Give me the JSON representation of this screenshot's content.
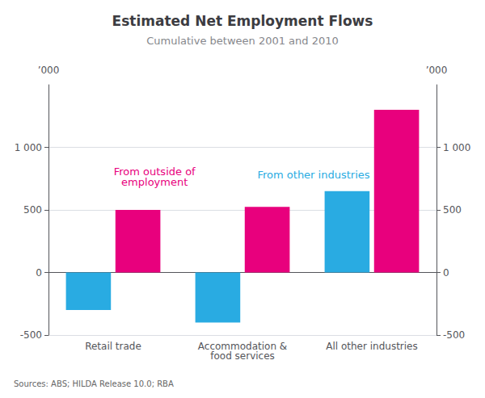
{
  "chart_data": {
    "type": "bar",
    "title": "Estimated Net Employment Flows",
    "subtitle": "Cumulative between 2001 and 2010",
    "ylabel": "’000",
    "y2label": "’000",
    "categories": [
      "Retail trade",
      "Accommodation &\nfood services",
      "All other industries"
    ],
    "series": [
      {
        "color": "#29ABE2",
        "values": [
          -300,
          -400,
          650
        ],
        "annotation": "From other industries"
      },
      {
        "color": "#E8007D",
        "values": [
          500,
          525,
          1300
        ],
        "annotation": "From outside of\nemployment"
      }
    ],
    "ylim": [
      -500,
      1500
    ],
    "yticks": [
      -500,
      0,
      500,
      {
        "value": 1000,
        "label": "1 000"
      }
    ],
    "y2lim": [
      -500,
      1500
    ],
    "y2ticks": [
      -500,
      0,
      500,
      {
        "value": 1000,
        "label": "1 000"
      }
    ],
    "grid": true,
    "source": "Sources: ABS; HILDA Release 10.0; RBA"
  }
}
